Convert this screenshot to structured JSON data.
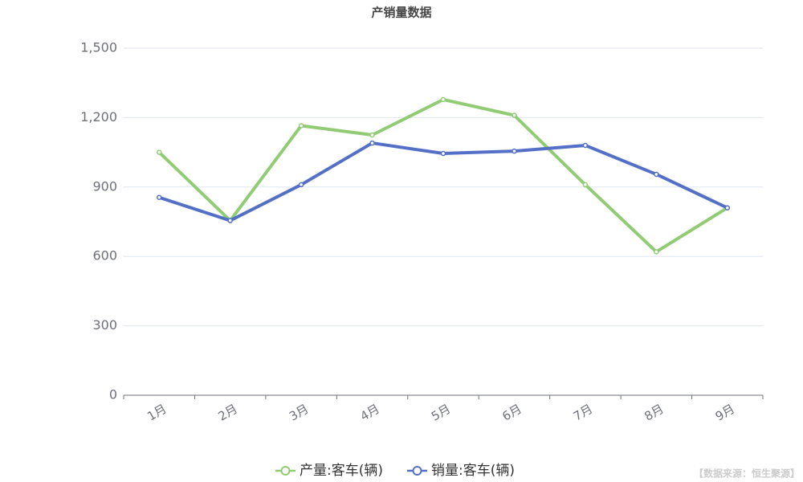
{
  "chart_data": {
    "type": "line",
    "title": "产销量数据",
    "categories": [
      "1月",
      "2月",
      "3月",
      "4月",
      "5月",
      "6月",
      "7月",
      "8月",
      "9月"
    ],
    "series": [
      {
        "name": "产量:客车(辆)",
        "color": "#91cc75",
        "values": [
          1050,
          755,
          1165,
          1125,
          1278,
          1210,
          910,
          620,
          810
        ]
      },
      {
        "name": "销量:客车(辆)",
        "color": "#5470c6",
        "values": [
          855,
          755,
          910,
          1090,
          1045,
          1055,
          1080,
          955,
          810
        ]
      }
    ],
    "ylim": [
      0,
      1500
    ],
    "yticks": [
      0,
      300,
      600,
      900,
      {
        "value": 1200,
        "label": "1,200"
      },
      {
        "value": 1500,
        "label": "1,500"
      }
    ],
    "grid": true,
    "legend": "bottom",
    "source": "【数据来源：恒生聚源】"
  }
}
